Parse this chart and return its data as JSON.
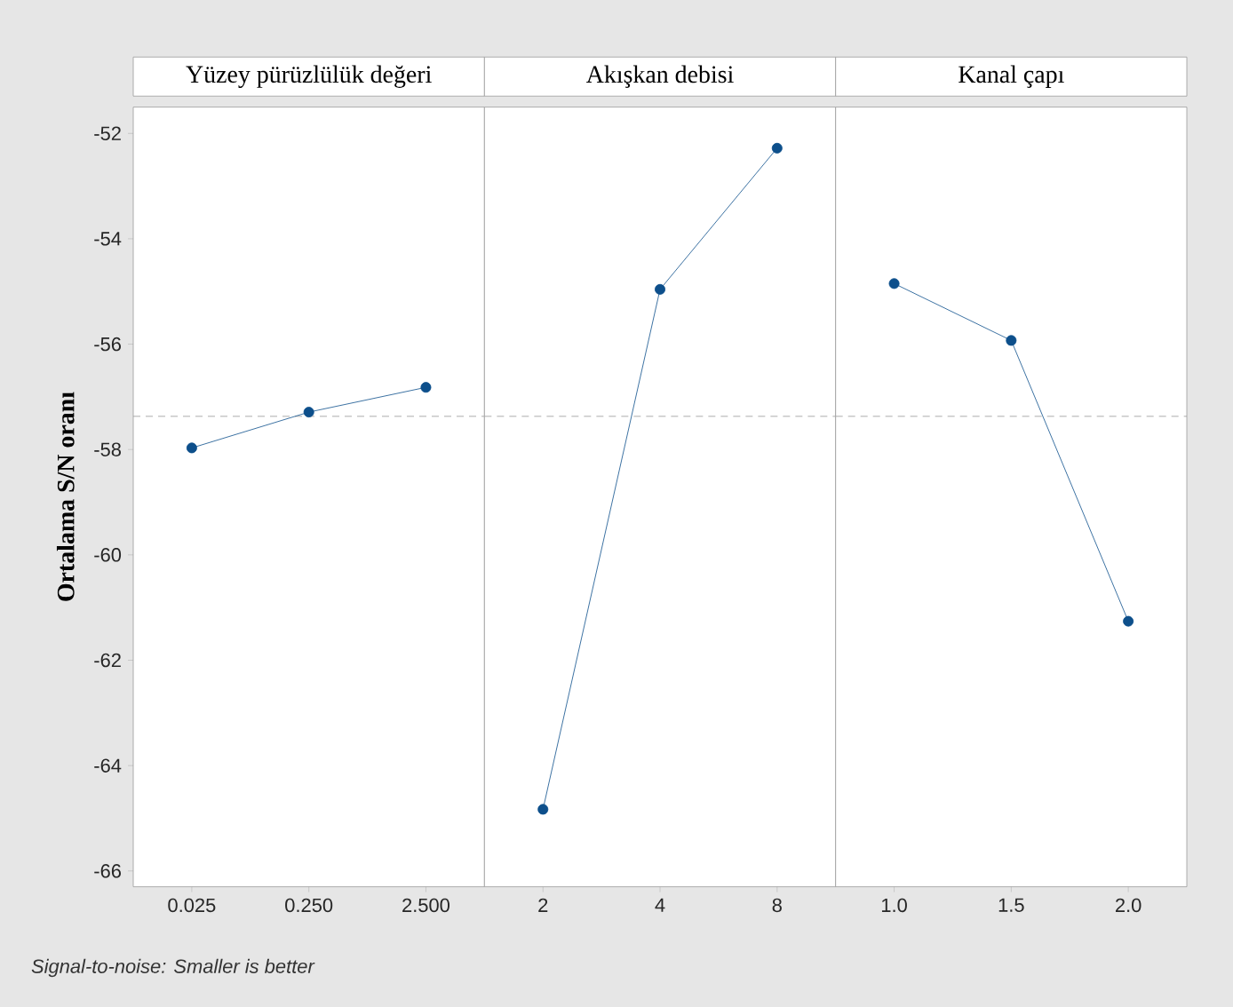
{
  "chart_data": [
    {
      "type": "line",
      "title": "Yüzey pürüzlülük değeri",
      "ylabel": "Ortalama S/N oranı",
      "categories": [
        "0.025",
        "0.250",
        "2.500"
      ],
      "series": [
        {
          "color": "#0d4f8b",
          "values": [
            -57.97,
            -57.29,
            -56.82
          ]
        }
      ],
      "ylim": [
        -66.3,
        -51.5
      ],
      "yticks": [
        -66,
        -64,
        -62,
        -60,
        -58,
        -56,
        -54,
        -52
      ],
      "marker": "circle",
      "line_style": "solid",
      "ref_lines": [
        {
          "axis": "y",
          "value": -57.37,
          "color": "#999999",
          "line_style": "dashed"
        }
      ],
      "annotations": [
        "*Signal-to-noise: Smaller is better*"
      ]
    },
    {
      "type": "line",
      "title": "Akışkan debisi",
      "categories": [
        "2",
        "4",
        "8"
      ],
      "series": [
        {
          "color": "#0d4f8b",
          "values": [
            -64.83,
            -54.96,
            -52.28
          ]
        }
      ],
      "ylim": [
        -66.3,
        -51.5
      ],
      "yticks": [
        -66,
        -64,
        -62,
        -60,
        -58,
        -56,
        -54,
        -52
      ],
      "tick_labels": "x",
      "marker": "circle",
      "line_style": "solid",
      "ref_lines": [
        {
          "axis": "y",
          "value": -57.37,
          "color": "#999999",
          "line_style": "dashed"
        }
      ]
    },
    {
      "type": "line",
      "title": "Kanal çapı",
      "categories": [
        "1.0",
        "1.5",
        "2.0"
      ],
      "series": [
        {
          "color": "#0d4f8b",
          "values": [
            -54.85,
            -55.93,
            -61.26
          ]
        }
      ],
      "ylim": [
        -66.3,
        -51.5
      ],
      "yticks": [
        -66,
        -64,
        -62,
        -60,
        -58,
        -56,
        -54,
        -52
      ],
      "tick_labels": "x",
      "marker": "circle",
      "line_style": "solid",
      "ref_lines": [
        {
          "axis": "y",
          "value": -57.37,
          "color": "#999999",
          "line_style": "dashed"
        }
      ]
    }
  ]
}
